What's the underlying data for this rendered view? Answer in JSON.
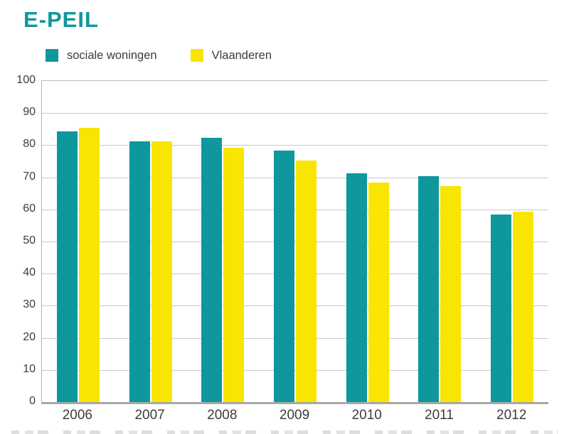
{
  "page": {
    "title": "E-PEIL"
  },
  "legend": {
    "items": [
      {
        "name": "sociale-woningen",
        "label": "sociale woningen",
        "color": "#0f979e"
      },
      {
        "name": "vlaanderen",
        "label": "Vlaanderen",
        "color": "#f8e502"
      }
    ]
  },
  "chart_data": {
    "type": "bar",
    "title": "E-PEIL",
    "categories": [
      "2006",
      "2007",
      "2008",
      "2009",
      "2010",
      "2011",
      "2012"
    ],
    "series": [
      {
        "name": "sociale woningen",
        "color": "#0f979e",
        "values": [
          84.3,
          81.3,
          82.3,
          78.3,
          71.3,
          70.3,
          58.3
        ]
      },
      {
        "name": "Vlaanderen",
        "color": "#f8e502",
        "values": [
          85.3,
          81.3,
          79.3,
          75.3,
          68.3,
          67.3,
          59.3
        ]
      }
    ],
    "xlabel": "",
    "ylabel": "",
    "ylim": [
      0,
      100
    ],
    "yticks": [
      0,
      10,
      20,
      30,
      40,
      50,
      60,
      70,
      80,
      90,
      100
    ],
    "grid": true,
    "legend_position": "top-left"
  },
  "colors": {
    "title": "#0f979e",
    "text": "#3c3c3b",
    "gridline": "#c9c9c9",
    "axis": "#a8a8a8"
  }
}
